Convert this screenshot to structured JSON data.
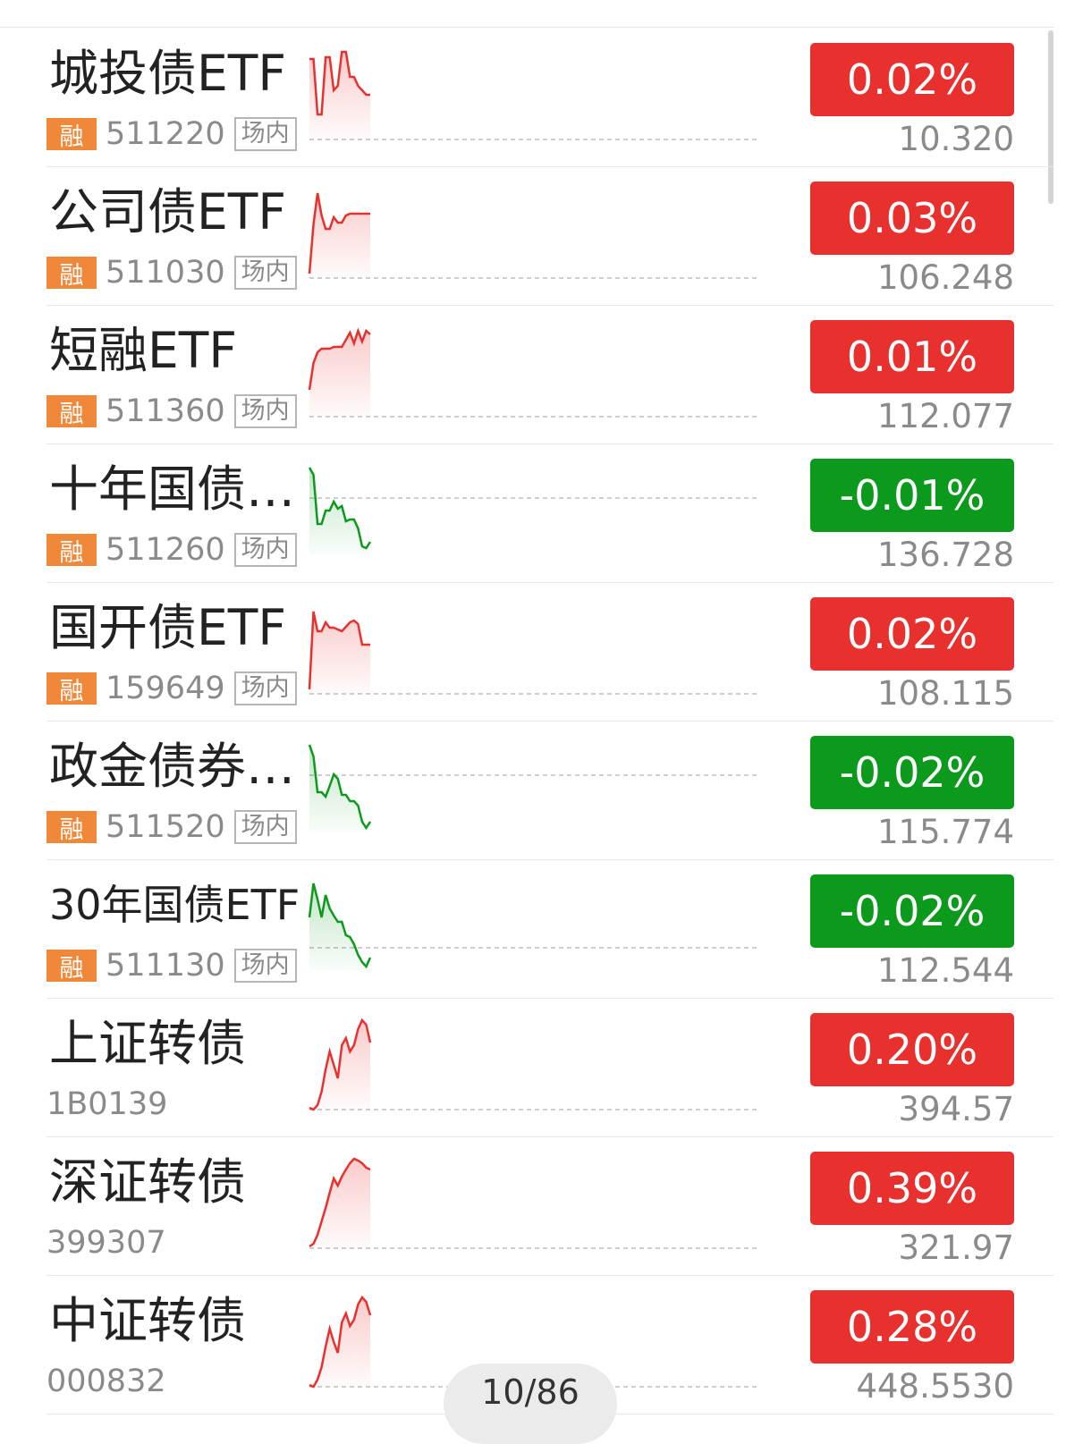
{
  "colors": {
    "up": "#e8312f",
    "down": "#0b9a1c",
    "margin_tag": "#f0883a"
  },
  "rows": [
    {
      "name": "城投债ETF",
      "margin_label": "融",
      "code": "511220",
      "exchange_tag": "场内",
      "change": "0.02%",
      "price": "10.320",
      "trend": "up",
      "sparkline": [
        0.9,
        0.9,
        0.28,
        0.28,
        0.92,
        0.92,
        0.55,
        0.6,
        0.98,
        0.98,
        0.7,
        0.7,
        0.6,
        0.55,
        0.5,
        0.5
      ]
    },
    {
      "name": "公司债ETF",
      "margin_label": "融",
      "code": "511030",
      "exchange_tag": "场内",
      "change": "0.03%",
      "price": "106.248",
      "trend": "up",
      "sparkline": [
        0.05,
        0.6,
        0.95,
        0.7,
        0.55,
        0.55,
        0.68,
        0.62,
        0.62,
        0.7,
        0.72,
        0.72,
        0.72,
        0.72,
        0.72,
        0.72
      ]
    },
    {
      "name": "短融ETF",
      "margin_label": "融",
      "code": "511360",
      "exchange_tag": "场内",
      "change": "0.01%",
      "price": "112.077",
      "trend": "up",
      "sparkline": [
        0.3,
        0.6,
        0.72,
        0.76,
        0.76,
        0.76,
        0.78,
        0.78,
        0.78,
        0.86,
        0.94,
        0.82,
        0.96,
        0.84,
        0.96,
        0.92
      ]
    },
    {
      "name": "十年国债ETF",
      "margin_label": "融",
      "code": "511260",
      "exchange_tag": "场内",
      "change": "-0.01%",
      "price": "136.728",
      "trend": "down",
      "sparkline": [
        0.98,
        0.9,
        0.35,
        0.35,
        0.5,
        0.5,
        0.6,
        0.52,
        0.55,
        0.38,
        0.4,
        0.4,
        0.3,
        0.1,
        0.08,
        0.15
      ]
    },
    {
      "name": "国开债ETF",
      "margin_label": "融",
      "code": "159649",
      "exchange_tag": "场内",
      "change": "0.02%",
      "price": "108.115",
      "trend": "up",
      "sparkline": [
        0.05,
        0.92,
        0.7,
        0.7,
        0.8,
        0.74,
        0.74,
        0.72,
        0.7,
        0.75,
        0.8,
        0.82,
        0.78,
        0.55,
        0.55,
        0.55
      ]
    },
    {
      "name": "政金债券ETF",
      "margin_label": "融",
      "code": "511520",
      "exchange_tag": "场内",
      "change": "-0.02%",
      "price": "115.774",
      "trend": "down",
      "sparkline": [
        0.98,
        0.85,
        0.45,
        0.45,
        0.4,
        0.52,
        0.65,
        0.6,
        0.42,
        0.42,
        0.35,
        0.35,
        0.3,
        0.12,
        0.05,
        0.12
      ]
    },
    {
      "name": "30年国债ETF",
      "margin_label": "融",
      "code": "511130",
      "exchange_tag": "场内",
      "change": "-0.02%",
      "price": "112.544",
      "trend": "down",
      "sparkline": [
        0.6,
        0.98,
        0.8,
        0.6,
        0.85,
        0.7,
        0.62,
        0.55,
        0.55,
        0.4,
        0.38,
        0.3,
        0.18,
        0.1,
        0.05,
        0.15
      ]
    },
    {
      "name": "上证转债",
      "margin_label": "",
      "code": "1B0139",
      "exchange_tag": "",
      "change": "0.20%",
      "price": "394.57",
      "trend": "up",
      "sparkline": [
        0.02,
        0.0,
        0.05,
        0.2,
        0.45,
        0.65,
        0.5,
        0.35,
        0.72,
        0.8,
        0.65,
        0.72,
        0.9,
        1.0,
        0.95,
        0.75
      ]
    },
    {
      "name": "深证转债",
      "margin_label": "",
      "code": "399307",
      "exchange_tag": "",
      "change": "0.39%",
      "price": "321.97",
      "trend": "up",
      "sparkline": [
        0.02,
        0.05,
        0.15,
        0.3,
        0.45,
        0.62,
        0.78,
        0.7,
        0.8,
        0.88,
        0.95,
        1.0,
        0.98,
        0.95,
        0.9,
        0.88
      ]
    },
    {
      "name": "中证转债",
      "margin_label": "",
      "code": "000832",
      "exchange_tag": "",
      "change": "0.28%",
      "price": "448.5530",
      "trend": "up",
      "sparkline": [
        0.02,
        0.0,
        0.08,
        0.22,
        0.45,
        0.65,
        0.5,
        0.38,
        0.72,
        0.82,
        0.68,
        0.75,
        0.92,
        1.0,
        0.95,
        0.8
      ]
    }
  ],
  "pager": {
    "label": "10/86"
  }
}
